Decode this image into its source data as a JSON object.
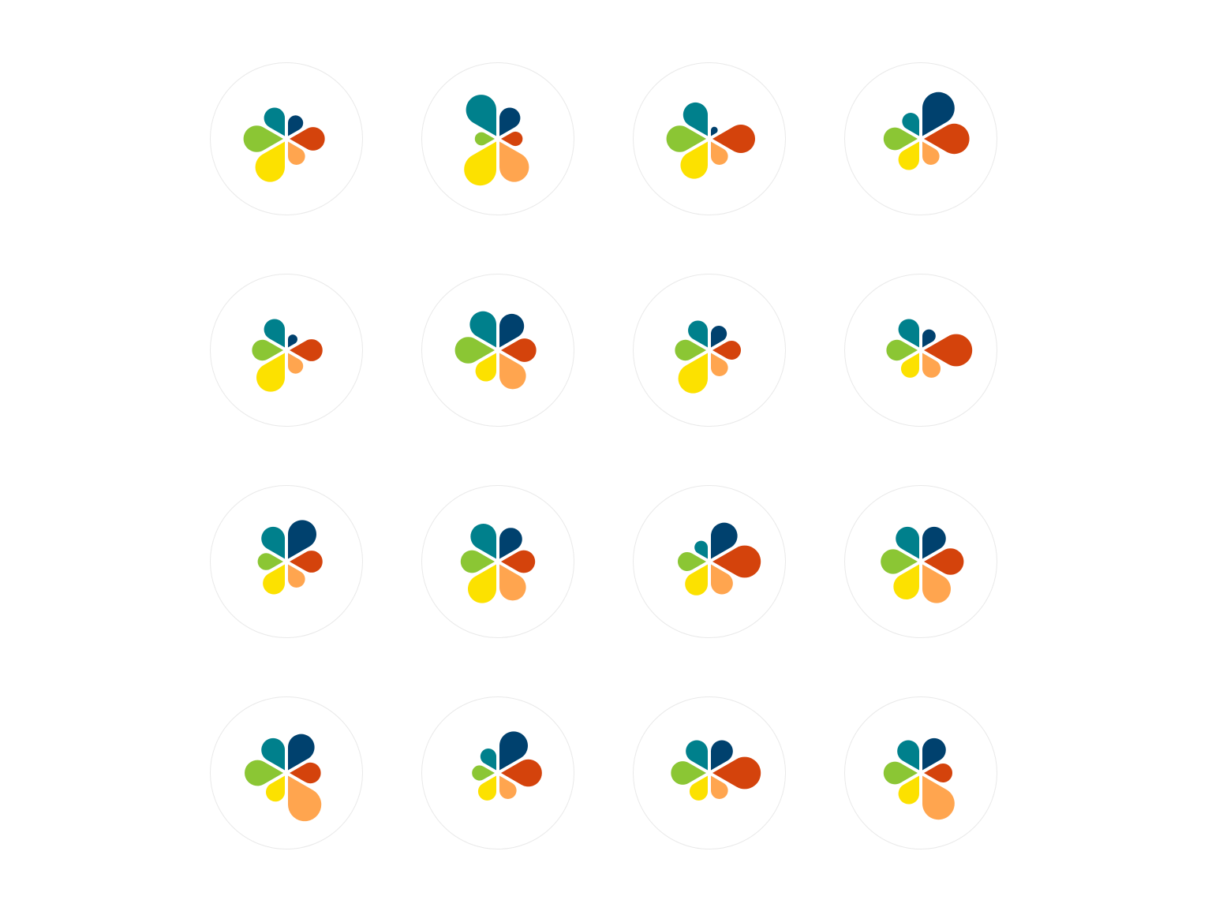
{
  "palette": {
    "teal": "#00808C",
    "navy": "#00416E",
    "red": "#D4430C",
    "orange": "#FFA54F",
    "yellow": "#FCE100",
    "green": "#8BC634",
    "background": "#FFFFFF",
    "ring": "#E9E9E9"
  },
  "petal_order": [
    "teal",
    "navy",
    "red",
    "orange",
    "yellow",
    "green"
  ],
  "petal_directions": [
    "up-left",
    "up-right",
    "right",
    "down-right",
    "down-left",
    "left"
  ],
  "icons": [
    {
      "name": "pinwheel-icon-1",
      "petals": [
        0.55,
        0.4,
        0.62,
        0.45,
        0.78,
        0.7
      ]
    },
    {
      "name": "pinwheel-icon-2",
      "petals": [
        0.8,
        0.55,
        0.38,
        0.78,
        0.85,
        0.35
      ]
    },
    {
      "name": "pinwheel-icon-3",
      "petals": [
        0.65,
        0.18,
        0.75,
        0.45,
        0.72,
        0.7
      ]
    },
    {
      "name": "pinwheel-icon-4",
      "petals": [
        0.45,
        0.85,
        0.8,
        0.45,
        0.55,
        0.6
      ]
    },
    {
      "name": "pinwheel-icon-5",
      "petals": [
        0.55,
        0.25,
        0.58,
        0.4,
        0.75,
        0.55
      ]
    },
    {
      "name": "pinwheel-icon-6",
      "petals": [
        0.7,
        0.65,
        0.62,
        0.7,
        0.55,
        0.7
      ]
    },
    {
      "name": "pinwheel-icon-7",
      "petals": [
        0.52,
        0.42,
        0.5,
        0.45,
        0.78,
        0.55
      ]
    },
    {
      "name": "pinwheel-icon-8",
      "petals": [
        0.55,
        0.35,
        0.85,
        0.48,
        0.48,
        0.55
      ]
    },
    {
      "name": "pinwheel-icon-9",
      "petals": [
        0.62,
        0.75,
        0.58,
        0.45,
        0.58,
        0.45
      ]
    },
    {
      "name": "pinwheel-icon-10",
      "petals": [
        0.68,
        0.6,
        0.6,
        0.7,
        0.75,
        0.6
      ]
    },
    {
      "name": "pinwheel-icon-11",
      "petals": [
        0.35,
        0.7,
        0.85,
        0.58,
        0.6,
        0.5
      ]
    },
    {
      "name": "pinwheel-icon-12",
      "petals": [
        0.62,
        0.62,
        0.7,
        0.75,
        0.68,
        0.65
      ]
    },
    {
      "name": "pinwheel-icon-13",
      "petals": [
        0.62,
        0.7,
        0.55,
        0.88,
        0.5,
        0.68
      ]
    },
    {
      "name": "pinwheel-icon-14",
      "petals": [
        0.42,
        0.75,
        0.72,
        0.45,
        0.48,
        0.4
      ]
    },
    {
      "name": "pinwheel-icon-15",
      "petals": [
        0.58,
        0.58,
        0.85,
        0.45,
        0.48,
        0.62
      ]
    },
    {
      "name": "pinwheel-icon-16",
      "petals": [
        0.58,
        0.62,
        0.5,
        0.85,
        0.55,
        0.6
      ]
    }
  ]
}
